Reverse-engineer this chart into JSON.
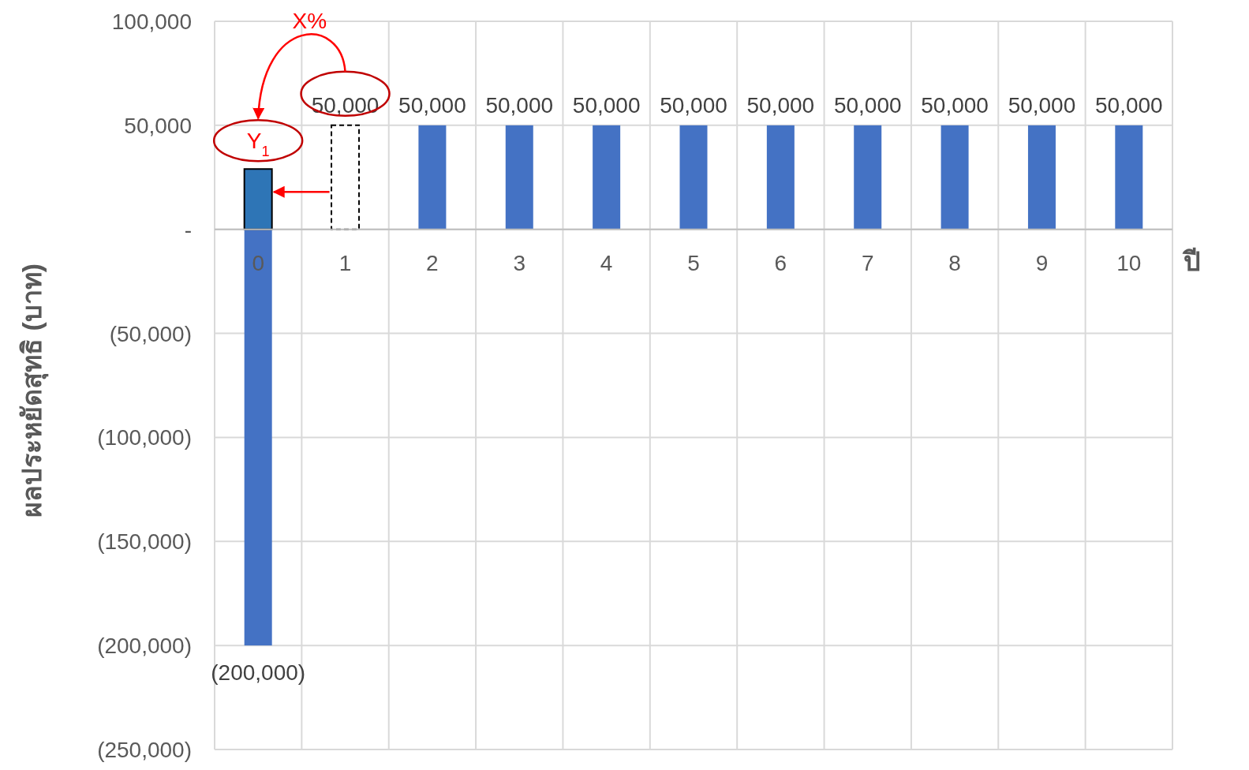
{
  "chart_data": {
    "type": "bar",
    "xlabel": "ปี",
    "ylabel": "ผลประหยัดสุทธิ (บาท)",
    "categories": [
      "0",
      "1",
      "2",
      "3",
      "4",
      "5",
      "6",
      "7",
      "8",
      "9",
      "10"
    ],
    "stacked": true,
    "series": [
      {
        "color": "#4472c4",
        "colors": [
          null,
          "#ffffff",
          null,
          null,
          null,
          null,
          null,
          null,
          null,
          null,
          null
        ],
        "values": [
          -200000,
          50000,
          50000,
          50000,
          50000,
          50000,
          50000,
          50000,
          50000,
          50000,
          50000
        ],
        "value_labels": [
          "(200,000)",
          "50,000",
          "50,000",
          "50,000",
          "50,000",
          "50,000",
          "50,000",
          "50,000",
          "50,000",
          "50,000",
          "50,000"
        ]
      },
      {
        "color": "#2e75b6",
        "values": [
          29000,
          null,
          null,
          null,
          null,
          null,
          null,
          null,
          null,
          null,
          null
        ]
      }
    ],
    "ylim": [
      -250000,
      100000
    ],
    "yticks": [
      {
        "value": 100000,
        "label": "100,000"
      },
      {
        "value": 50000,
        "label": "50,000"
      },
      {
        "value": 0,
        "label": "-"
      },
      {
        "value": -50000,
        "label": "(50,000)"
      },
      {
        "value": -100000,
        "label": "(100,000)"
      },
      {
        "value": -150000,
        "label": "(150,000)"
      },
      {
        "value": -200000,
        "label": "(200,000)"
      },
      {
        "value": -250000,
        "label": "(250,000)"
      }
    ],
    "grid": true,
    "annotations": [
      {
        "text": "Y$_{1}$",
        "x": "0",
        "y": 29000
      },
      "X%"
    ]
  }
}
